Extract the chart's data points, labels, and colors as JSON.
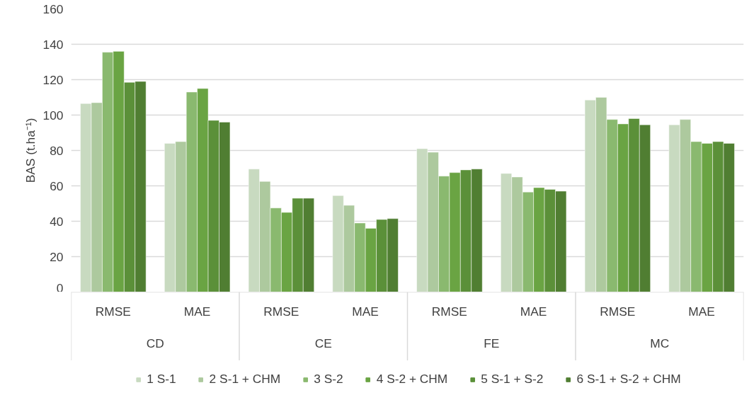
{
  "chart_data": {
    "type": "bar",
    "ylabel": "BAS (t.ha⁻¹)",
    "categories": [
      "RMSE",
      "MAE",
      "RMSE",
      "MAE",
      "RMSE",
      "MAE",
      "RMSE",
      "MAE"
    ],
    "annotations": [
      "CD",
      "CE",
      "FE",
      "MC"
    ],
    "series": [
      {
        "name": "1 S-1",
        "color": "#c8dac0",
        "values": [
          106.5,
          84,
          69.5,
          54.5,
          81,
          67,
          108.5,
          94.5
        ]
      },
      {
        "name": "2 S-1 + CHM",
        "color": "#adc99e",
        "values": [
          107,
          85,
          62.5,
          49,
          79,
          65,
          110,
          97.5
        ]
      },
      {
        "name": "3 S-2",
        "color": "#8ab96f",
        "values": [
          135.5,
          113,
          47.5,
          39,
          65.5,
          56.5,
          97.5,
          85
        ]
      },
      {
        "name": "4 S-2 + CHM",
        "color": "#6aa443",
        "values": [
          136,
          115,
          45,
          36,
          67.5,
          59,
          95,
          84
        ]
      },
      {
        "name": "5 S-1 + S-2",
        "color": "#5b9039",
        "values": [
          118.5,
          97,
          53,
          41,
          69,
          58,
          98,
          85
        ]
      },
      {
        "name": "6 S-1 + S-2 + CHM",
        "color": "#507e32",
        "values": [
          119,
          96,
          53,
          41.5,
          69.5,
          57,
          94.5,
          84
        ]
      }
    ],
    "ylim": [
      0,
      160
    ],
    "yticks": [
      0,
      20,
      40,
      60,
      80,
      100,
      120,
      140,
      160
    ],
    "grid": "y",
    "legend": "bottom"
  }
}
